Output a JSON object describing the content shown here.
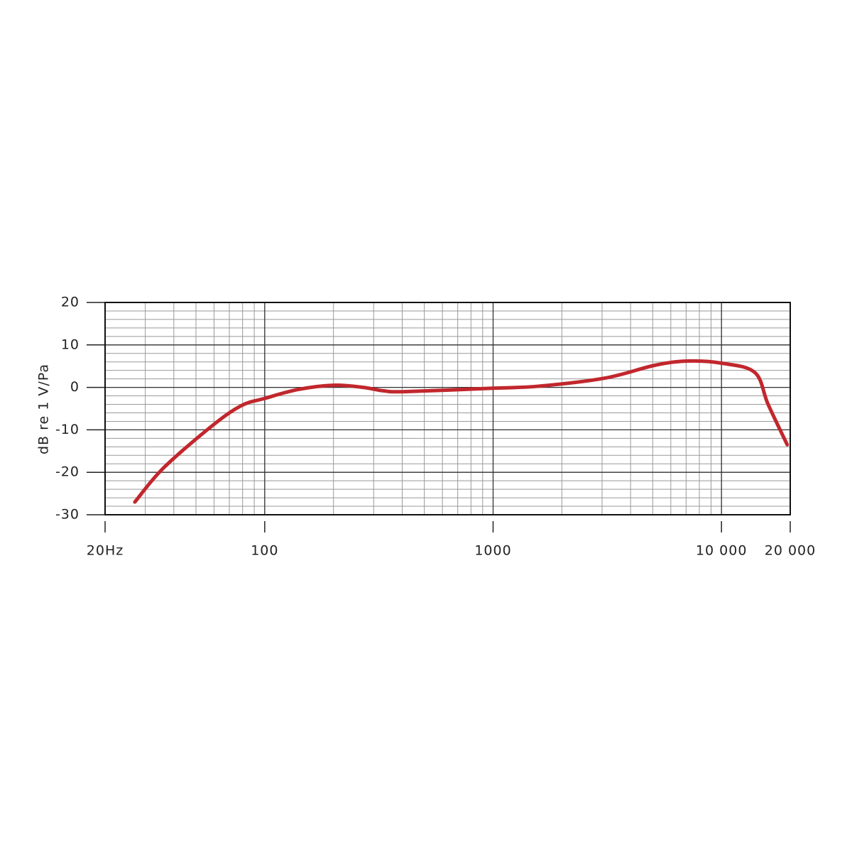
{
  "chart_data": {
    "type": "line",
    "y_label": "dB re 1 V/Pa",
    "x": [
      27,
      36,
      59,
      79,
      100,
      140,
      200,
      270,
      330,
      410,
      1000,
      1600,
      3100,
      5100,
      7100,
      10000,
      14000,
      16000,
      19400
    ],
    "series": [
      {
        "color": "#c1272d",
        "values": [
          -27,
          -19,
          -9,
          -4.3,
          -2.6,
          -0.5,
          0.5,
          0,
          -0.8,
          -1,
          -0.2,
          0.3,
          2.2,
          5.2,
          6.2,
          5.7,
          3.5,
          -4,
          -13.5
        ]
      }
    ],
    "xlim": [
      20,
      20000
    ],
    "xticks": [
      {
        "value": 20,
        "label": "20Hz"
      },
      100,
      1000,
      {
        "value": 10000,
        "label": "10 000"
      },
      {
        "value": 20000,
        "label": "20 000"
      }
    ],
    "ylim": [
      -30,
      20
    ],
    "yticks": [
      -30,
      -20,
      -10,
      0,
      10,
      20
    ],
    "xscale": "log",
    "grid": true,
    "minor_grid": true
  }
}
